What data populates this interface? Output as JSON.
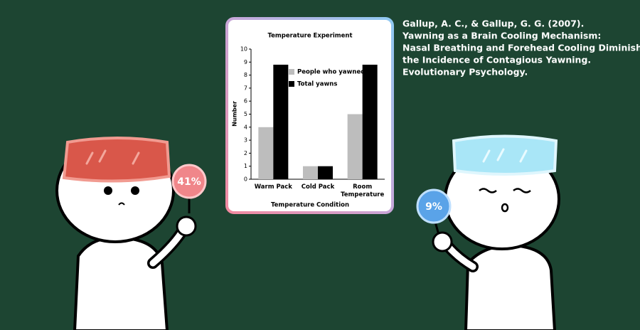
{
  "chart_data": {
    "type": "bar",
    "title": "Temperature Experiment",
    "categories": [
      "Warm Pack",
      "Cold Pack",
      "Room Temperature"
    ],
    "series": [
      {
        "name": "People who yawned",
        "color": "#bdbdbd",
        "values": [
          4,
          1,
          5
        ]
      },
      {
        "name": "Total yawns",
        "color": "#000000",
        "values": [
          8.8,
          1,
          8.8
        ]
      }
    ],
    "x_label": "Temperature Condition",
    "y_label": "Number",
    "ylim": [
      0,
      10
    ],
    "yticks": [
      0,
      1,
      2,
      3,
      4,
      5,
      6,
      7,
      8,
      9,
      10
    ],
    "grid": false,
    "legend": "upper center"
  },
  "citation": [
    "Gallup, A. C., & Gallup, G. G. (2007).",
    "Yawning as a Brain Cooling Mechanism:",
    "Nasal Breathing and Forehead Cooling Diminish",
    "the Incidence of Contagious Yawning.",
    "Evolutionary Psychology."
  ],
  "signs": {
    "left": "41%",
    "right": "9%"
  }
}
